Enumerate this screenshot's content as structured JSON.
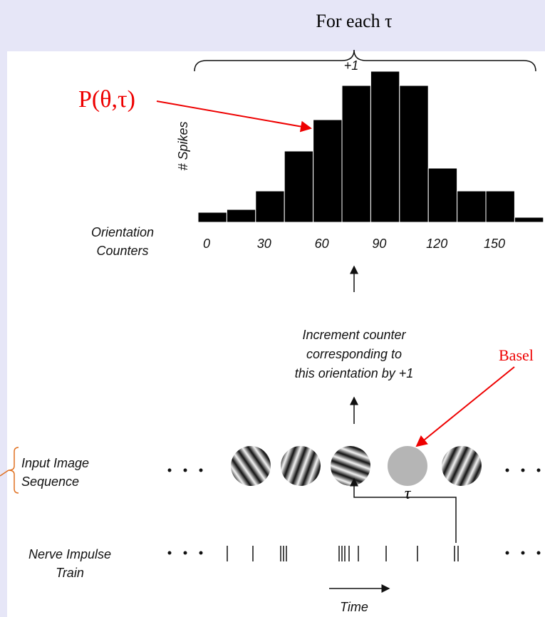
{
  "header": {
    "title": "For each τ"
  },
  "annotations": {
    "p_label": "P(θ,τ)",
    "baseline": "Basel",
    "tau": "τ"
  },
  "histogram": {
    "y_label": "# Spikes",
    "increment": "+1",
    "x_label_lines": [
      "Orientation",
      "Counters"
    ],
    "x_ticks": [
      "0",
      "30",
      "60",
      "90",
      "120",
      "150"
    ],
    "bar_heights": [
      14,
      18,
      44,
      100,
      144,
      192,
      212,
      192,
      76,
      44,
      44,
      7
    ]
  },
  "steps": {
    "increment_lines": [
      "Increment counter",
      "corresponding to",
      "this orientation by +1"
    ],
    "input_lines": [
      "Input Image",
      "Sequence"
    ],
    "nerve_lines": [
      "Nerve Impulse",
      "Train"
    ],
    "time": "Time"
  }
}
